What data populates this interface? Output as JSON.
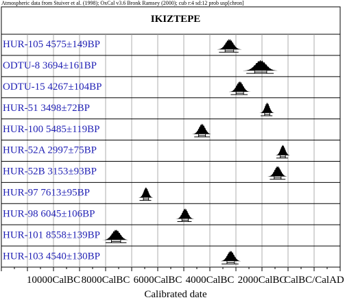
{
  "header_note": "Atmospheric data from Stuiver et al. (1998); OxCal v3.6 Bronk Ramsey (2000); cub r:4 sd:12 prob usp[chron]",
  "colors": {
    "label": "#1f1fb4",
    "axis": "#000000",
    "grid": "#999999",
    "frame": "#000000"
  },
  "chart_data": {
    "type": "distribution",
    "title": "IKIZTEPE",
    "xlabel": "Calibrated date",
    "x_tick_labels": [
      "10000CalBC",
      "8000CalBC",
      "6000CalBC",
      "4000CalBC",
      "2000CalBC",
      "CalBC/CalAD"
    ],
    "x_tick_values": [
      -10000,
      -8000,
      -6000,
      -4000,
      -2000,
      0
    ],
    "x_range": [
      -12000,
      1000
    ],
    "grid": true,
    "samples": [
      {
        "label": "HUR-105  4575±149BP",
        "lab_code": "HUR-105",
        "bp": 4575,
        "err": 149,
        "cal_center": -3250,
        "range": [
          -3650,
          -2900
        ]
      },
      {
        "label": "ODTU-8  3694±161BP",
        "lab_code": "ODTU-8",
        "bp": 3694,
        "err": 161,
        "cal_center": -2050,
        "range": [
          -2600,
          -1550
        ]
      },
      {
        "label": "ODTU-15  4267±104BP",
        "lab_code": "ODTU-15",
        "bp": 4267,
        "err": 104,
        "cal_center": -2850,
        "range": [
          -3200,
          -2550
        ]
      },
      {
        "label": "HUR-51  3498±72BP",
        "lab_code": "HUR-51",
        "bp": 3498,
        "err": 72,
        "cal_center": -1800,
        "range": [
          -2050,
          -1600
        ]
      },
      {
        "label": "HUR-100  5485±119BP",
        "lab_code": "HUR-100",
        "bp": 5485,
        "err": 119,
        "cal_center": -4300,
        "range": [
          -4600,
          -4000
        ]
      },
      {
        "label": "HUR-52A  2997±75BP",
        "lab_code": "HUR-52A",
        "bp": 2997,
        "err": 75,
        "cal_center": -1200,
        "range": [
          -1450,
          -1000
        ]
      },
      {
        "label": "HUR-52B  3153±93BP",
        "lab_code": "HUR-52B",
        "bp": 3153,
        "err": 93,
        "cal_center": -1400,
        "range": [
          -1700,
          -1100
        ]
      },
      {
        "label": "HUR-97  7613±95BP",
        "lab_code": "HUR-97",
        "bp": 7613,
        "err": 95,
        "cal_center": -6450,
        "range": [
          -6700,
          -6250
        ]
      },
      {
        "label": "HUR-98  6045±106BP",
        "lab_code": "HUR-98",
        "bp": 6045,
        "err": 106,
        "cal_center": -4950,
        "range": [
          -5250,
          -4700
        ]
      },
      {
        "label": "HUR-101  8558±139BP",
        "lab_code": "HUR-101",
        "bp": 8558,
        "err": 139,
        "cal_center": -7600,
        "range": [
          -8000,
          -7200
        ]
      },
      {
        "label": "HUR-103  4540±130BP",
        "lab_code": "HUR-103",
        "bp": 4540,
        "err": 130,
        "cal_center": -3200,
        "range": [
          -3550,
          -2900
        ]
      }
    ]
  }
}
